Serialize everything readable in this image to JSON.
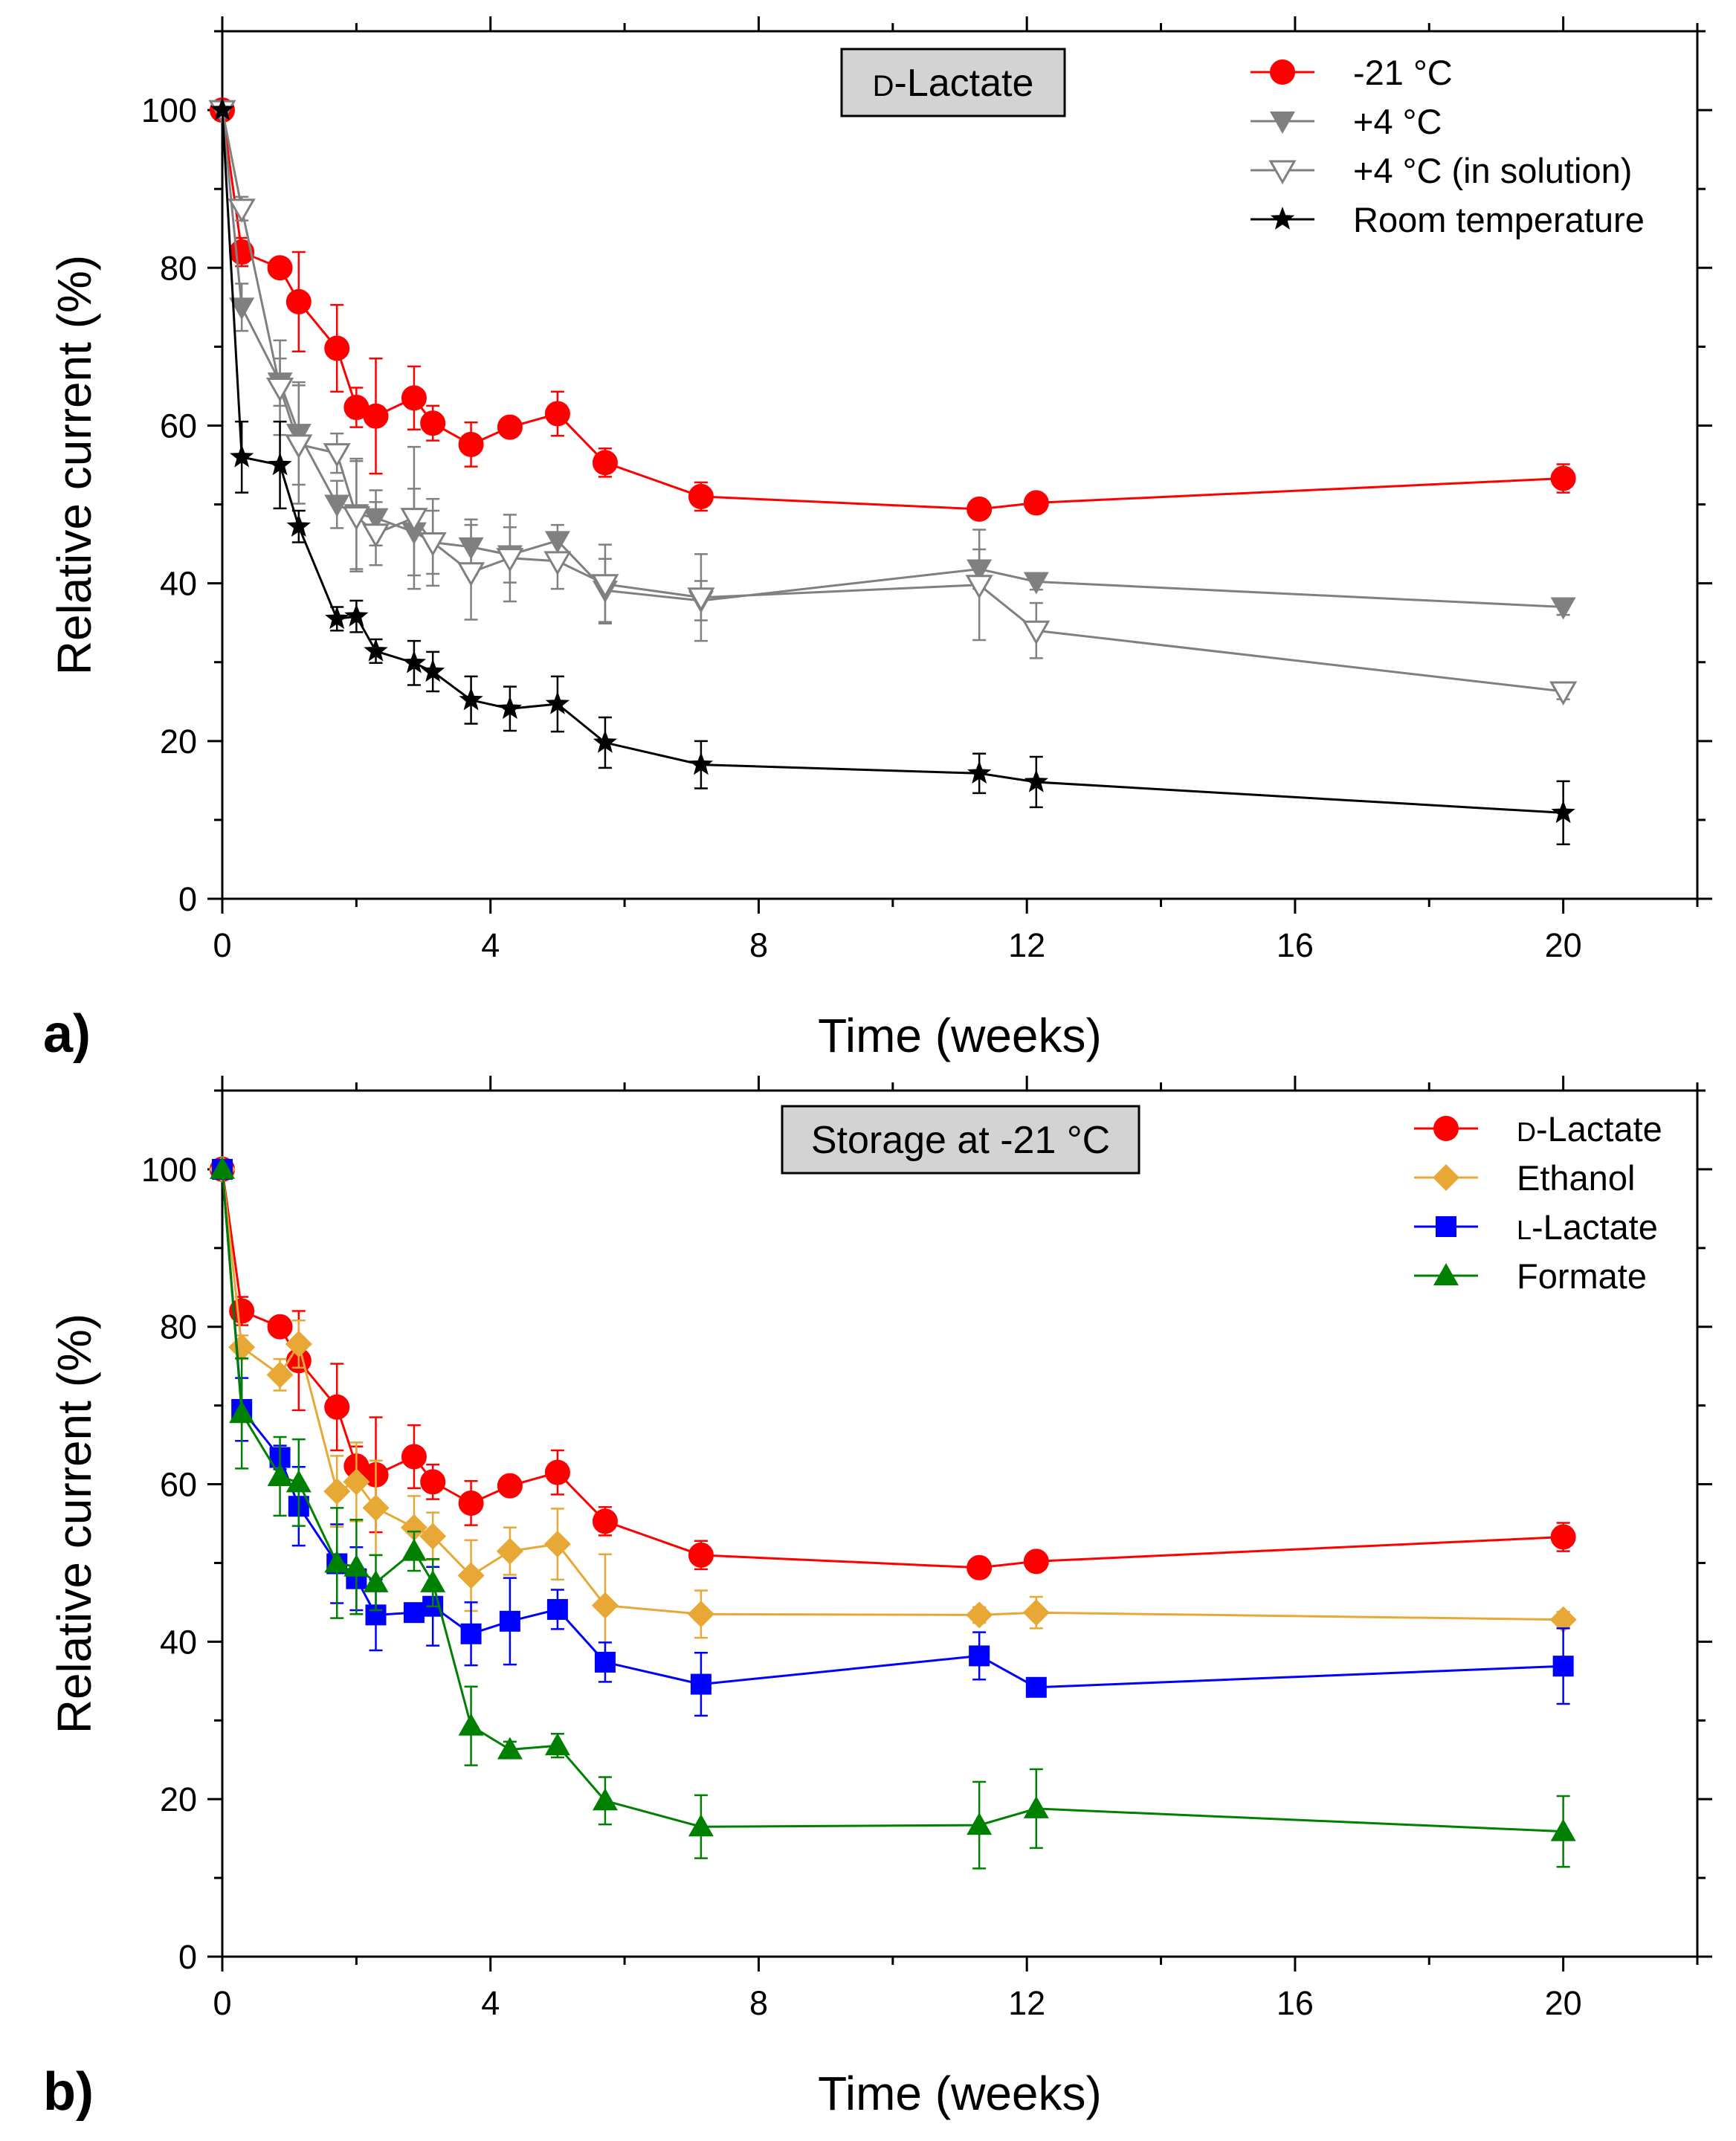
{
  "chart_data": [
    {
      "type": "line",
      "panel_label": "a)",
      "title": "D-Lactate",
      "title_prefix": "D",
      "title_rest": "-Lactate",
      "xlabel": "Time (weeks)",
      "ylabel": "Relative current (%)",
      "xlim": [
        0,
        22
      ],
      "ylim": [
        0,
        110
      ],
      "xticks": [
        0,
        4,
        8,
        12,
        16,
        20
      ],
      "xtick_labels": [
        "0",
        "4",
        "8",
        "12",
        "16",
        "20"
      ],
      "yticks": [
        0,
        20,
        40,
        60,
        80,
        100
      ],
      "ytick_labels": [
        "0",
        "20",
        "40",
        "60",
        "80",
        "100"
      ],
      "legend_position": "top-right",
      "series": [
        {
          "name": "-21 °C",
          "color": "#ff0000",
          "marker": "circle",
          "x": [
            0,
            0.29,
            0.86,
            1.14,
            1.71,
            2.0,
            2.29,
            2.86,
            3.14,
            3.71,
            4.29,
            5.0,
            5.71,
            7.14,
            11.29,
            12.14,
            20.0
          ],
          "y": [
            100,
            82.0,
            80.0,
            75.7,
            69.8,
            62.3,
            61.2,
            63.5,
            60.3,
            57.6,
            59.8,
            61.5,
            55.3,
            51.0,
            49.4,
            50.2,
            53.3
          ],
          "err": [
            0,
            1.8,
            1.0,
            6.3,
            5.5,
            2.5,
            7.3,
            4.0,
            2.2,
            2.8,
            1.2,
            2.8,
            1.8,
            1.8,
            1.0,
            0.8,
            1.8
          ]
        },
        {
          "name": "+4 °C",
          "color": "#808080",
          "marker": "triangle-down",
          "x": [
            0,
            0.29,
            0.86,
            1.14,
            1.71,
            2.0,
            2.29,
            2.86,
            3.14,
            3.71,
            4.29,
            5.0,
            5.71,
            7.14,
            11.29,
            12.14,
            20.0
          ],
          "y": [
            100,
            75.0,
            65.5,
            59.0,
            50.0,
            48.8,
            48.3,
            46.5,
            45.2,
            44.6,
            43.6,
            45.4,
            39.1,
            37.8,
            41.8,
            40.2,
            37.0
          ],
          "err": [
            0,
            3.0,
            3.0,
            6.5,
            3.0,
            7.0,
            3.5,
            5.5,
            4.0,
            3.5,
            3.5,
            2.0,
            4.0,
            2.5,
            2.5,
            1.0,
            1.0
          ]
        },
        {
          "name": "+4 °C (in solution)",
          "color": "#808080",
          "marker": "triangle-down-open",
          "x": [
            0,
            0.29,
            0.86,
            1.14,
            1.71,
            2.0,
            2.29,
            2.86,
            3.14,
            3.71,
            4.29,
            5.0,
            5.71,
            7.14,
            11.29,
            12.14,
            20.0
          ],
          "y": [
            100,
            87.5,
            64.8,
            57.6,
            56.5,
            48.5,
            46.3,
            48.3,
            45.2,
            41.4,
            43.2,
            42.8,
            39.9,
            38.2,
            39.8,
            34.0,
            26.3
          ],
          "err": [
            0,
            1.5,
            6.0,
            7.5,
            2.5,
            7.0,
            4.0,
            9.0,
            5.5,
            6.0,
            5.5,
            3.5,
            5.0,
            5.5,
            7.0,
            3.5,
            1.0
          ]
        },
        {
          "name": "Room temperature",
          "color": "#000000",
          "marker": "star",
          "x": [
            0,
            0.29,
            0.86,
            1.14,
            1.71,
            2.0,
            2.29,
            2.86,
            3.14,
            3.71,
            4.29,
            5.0,
            5.71,
            7.14,
            11.29,
            12.14,
            20.0
          ],
          "y": [
            100,
            56.0,
            55.0,
            47.2,
            35.5,
            35.8,
            31.4,
            29.9,
            28.8,
            25.2,
            24.1,
            24.7,
            19.8,
            17.0,
            15.9,
            14.8,
            10.9
          ],
          "err": [
            0,
            4.5,
            5.5,
            2.0,
            1.5,
            2.0,
            1.5,
            2.8,
            2.5,
            3.0,
            2.8,
            3.5,
            3.2,
            3.0,
            2.5,
            3.2,
            4.0
          ]
        }
      ]
    },
    {
      "type": "line",
      "panel_label": "b)",
      "title": "Storage at -21 °C",
      "xlabel": "Time (weeks)",
      "ylabel": "Relative current (%)",
      "xlim": [
        0,
        22
      ],
      "ylim": [
        0,
        110
      ],
      "xticks": [
        0,
        4,
        8,
        12,
        16,
        20
      ],
      "xtick_labels": [
        "0",
        "4",
        "8",
        "12",
        "16",
        "20"
      ],
      "yticks": [
        0,
        20,
        40,
        60,
        80,
        100
      ],
      "ytick_labels": [
        "0",
        "20",
        "40",
        "60",
        "80",
        "100"
      ],
      "legend_position": "top-right",
      "series": [
        {
          "name": "D-Lactate",
          "name_prefix": "D",
          "name_rest": "-Lactate",
          "color": "#ff0000",
          "marker": "circle",
          "x": [
            0,
            0.29,
            0.86,
            1.14,
            1.71,
            2.0,
            2.29,
            2.86,
            3.14,
            3.71,
            4.29,
            5.0,
            5.71,
            7.14,
            11.29,
            12.14,
            20.0
          ],
          "y": [
            100,
            82.0,
            80.0,
            75.7,
            69.8,
            62.3,
            61.2,
            63.5,
            60.3,
            57.6,
            59.8,
            61.5,
            55.3,
            51.0,
            49.4,
            50.2,
            53.3
          ],
          "err": [
            0,
            1.8,
            1.0,
            6.3,
            5.5,
            2.5,
            7.3,
            4.0,
            2.2,
            2.8,
            1.2,
            2.8,
            1.8,
            1.8,
            1.0,
            0.8,
            1.8
          ]
        },
        {
          "name": "Ethanol",
          "color": "#e8a835",
          "marker": "diamond",
          "x": [
            0,
            0.29,
            0.86,
            1.14,
            1.71,
            2.0,
            2.29,
            2.86,
            3.14,
            3.71,
            4.29,
            5.0,
            5.71,
            7.14,
            11.29,
            12.14,
            20.0
          ],
          "y": [
            100,
            77.4,
            73.9,
            77.8,
            59.1,
            60.3,
            57.0,
            54.5,
            53.4,
            48.4,
            51.5,
            52.4,
            44.6,
            43.5,
            43.4,
            43.7,
            42.8
          ],
          "err": [
            0,
            1.5,
            2.0,
            3.0,
            4.5,
            5.0,
            6.0,
            4.0,
            3.0,
            4.5,
            3.0,
            4.5,
            6.5,
            3.0,
            1.0,
            2.0,
            1.0
          ]
        },
        {
          "name": "L-Lactate",
          "name_prefix": "L",
          "name_rest": "-Lactate",
          "color": "#0000ff",
          "marker": "square",
          "x": [
            0,
            0.29,
            0.86,
            1.14,
            1.71,
            2.0,
            2.29,
            2.86,
            3.14,
            3.71,
            4.29,
            5.0,
            5.71,
            7.14,
            11.29,
            12.14,
            20.0
          ],
          "y": [
            100,
            69.5,
            63.4,
            57.2,
            49.9,
            48.0,
            43.4,
            43.7,
            44.5,
            41.0,
            42.6,
            44.1,
            37.4,
            34.6,
            38.2,
            34.2,
            36.9
          ],
          "err": [
            0,
            4.0,
            1.5,
            5.0,
            5.0,
            4.0,
            4.5,
            1.0,
            5.0,
            4.0,
            5.5,
            2.5,
            2.5,
            4.0,
            3.0,
            0.5,
            4.8
          ]
        },
        {
          "name": "Formate",
          "color": "#008000",
          "marker": "triangle-up",
          "x": [
            0,
            0.29,
            0.86,
            1.14,
            1.71,
            2.0,
            2.29,
            2.86,
            3.14,
            3.71,
            4.29,
            5.0,
            5.71,
            7.14,
            11.29,
            12.14,
            20.0
          ],
          "y": [
            100,
            69.0,
            61.0,
            60.2,
            50.0,
            49.5,
            47.5,
            51.5,
            47.5,
            29.3,
            26.3,
            26.8,
            19.8,
            16.5,
            16.7,
            18.8,
            15.9
          ],
          "err": [
            0,
            7.0,
            5.0,
            5.5,
            7.0,
            6.0,
            3.5,
            2.5,
            3.0,
            5.0,
            1.0,
            1.5,
            3.0,
            4.0,
            5.5,
            5.0,
            4.5
          ]
        }
      ]
    }
  ]
}
